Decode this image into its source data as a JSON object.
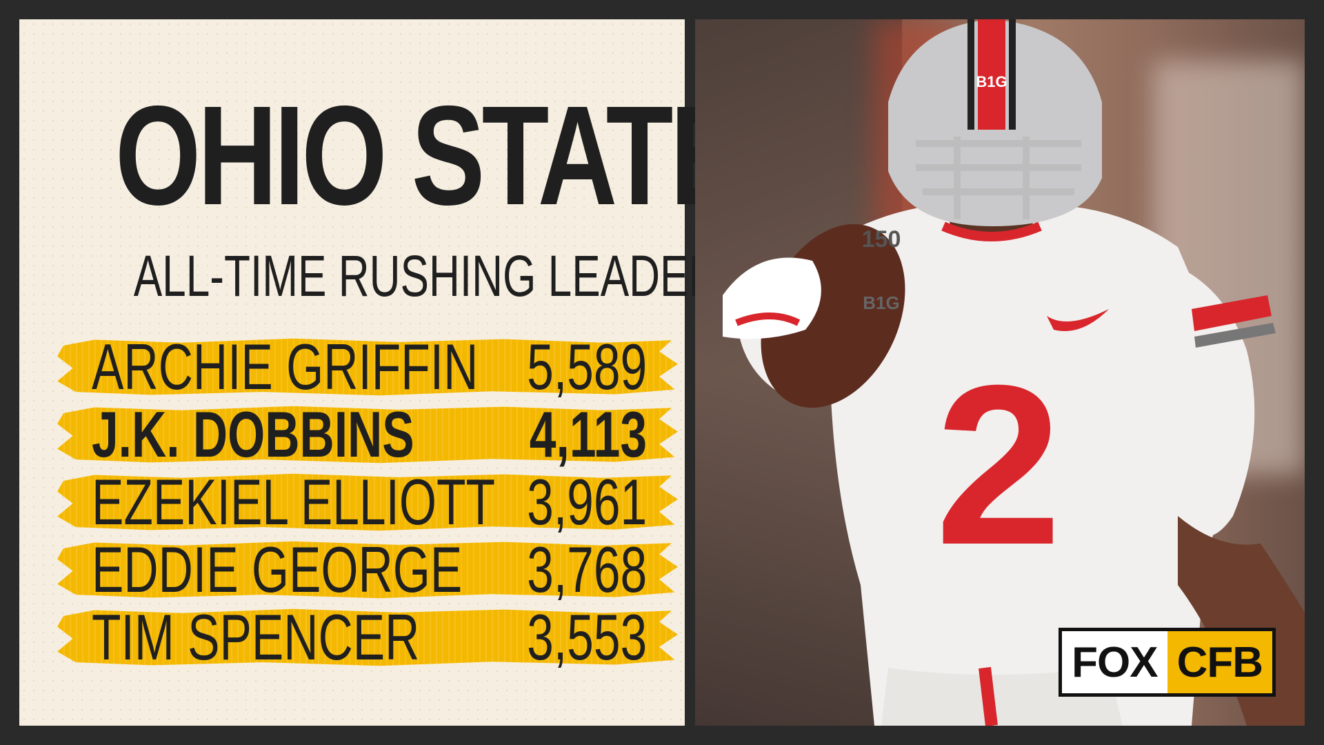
{
  "header": {
    "title": "OHIO STATE",
    "subtitle": "ALL-TIME RUSHING LEADERS"
  },
  "leaders": [
    {
      "name": "ARCHIE GRIFFIN",
      "yards": "5,589",
      "highlight": false
    },
    {
      "name": "J.K. DOBBINS",
      "yards": "4,113",
      "highlight": true
    },
    {
      "name": "EZEKIEL ELLIOTT",
      "yards": "3,961",
      "highlight": false
    },
    {
      "name": "EDDIE GEORGE",
      "yards": "3,768",
      "highlight": false
    },
    {
      "name": "TIM SPENCER",
      "yards": "3,553",
      "highlight": false
    }
  ],
  "photo": {
    "jersey_number": "2",
    "helmet_text": "B1G",
    "patch_text": "150",
    "sleeve_text": "B1G"
  },
  "logo": {
    "left": "FOX",
    "right": "CFB"
  },
  "colors": {
    "background": "#2a2a2a",
    "panel": "#f6efe1",
    "brush": "#f5b800",
    "text": "#1f1f1f",
    "jersey_red": "#d8262c"
  }
}
